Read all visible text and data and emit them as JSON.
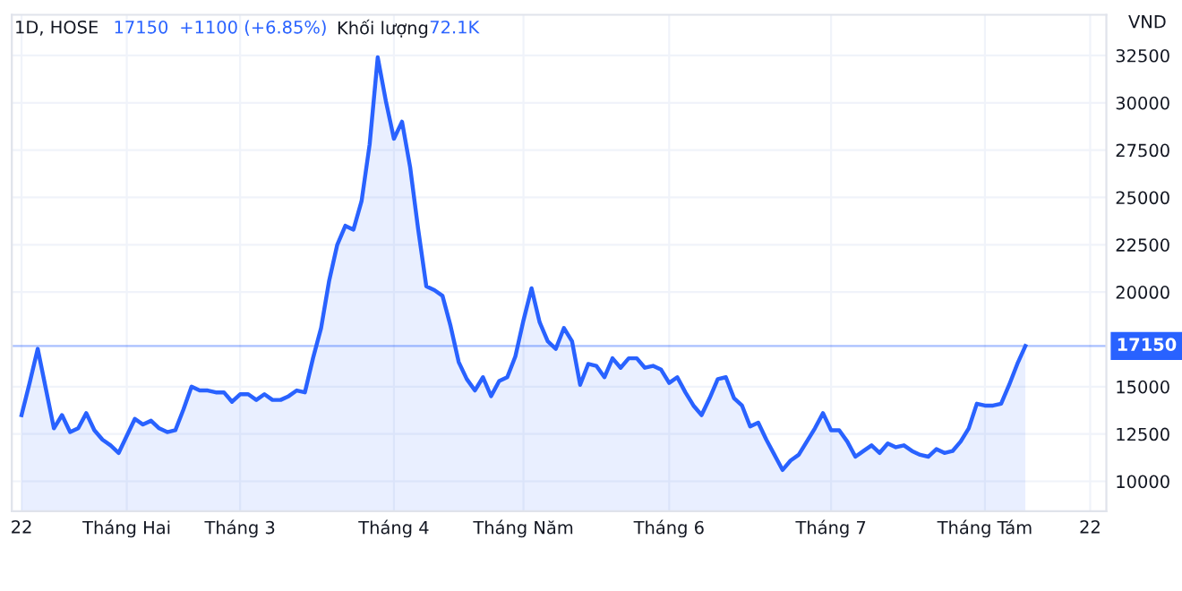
{
  "chart_data": {
    "type": "area",
    "title": "1D, HOSE",
    "annotations": [
      "17150",
      "+1100 (+6.85%)",
      "Khối lượng",
      "72.1K"
    ],
    "ylabel": "VND",
    "categories": [
      "22",
      null,
      null,
      null,
      null,
      null,
      null,
      null,
      null,
      null,
      null,
      null,
      null,
      "Tháng Hai",
      null,
      null,
      null,
      null,
      null,
      null,
      null,
      null,
      null,
      null,
      null,
      null,
      null,
      "Tháng 3",
      null,
      null,
      null,
      null,
      null,
      null,
      null,
      null,
      null,
      null,
      null,
      null,
      null,
      null,
      null,
      null,
      null,
      null,
      "Tháng 4",
      null,
      null,
      null,
      null,
      null,
      null,
      null,
      null,
      null,
      null,
      null,
      null,
      null,
      null,
      null,
      "Tháng Năm",
      null,
      null,
      null,
      null,
      null,
      null,
      null,
      null,
      null,
      null,
      null,
      null,
      null,
      null,
      null,
      null,
      null,
      "Tháng 6",
      null,
      null,
      null,
      null,
      null,
      null,
      null,
      null,
      null,
      null,
      null,
      null,
      null,
      null,
      null,
      null,
      null,
      null,
      null,
      "Tháng 7",
      null,
      null,
      null,
      null,
      null,
      null,
      null,
      null,
      null,
      null,
      null,
      null,
      null,
      null,
      null,
      null,
      null,
      null,
      "Tháng Tám",
      null,
      null,
      null,
      null,
      null,
      null,
      null,
      null,
      null,
      null,
      null,
      null,
      "22",
      null,
      null
    ],
    "series": [
      {
        "color": "#2962ff",
        "values": [
          13500,
          15200,
          17000,
          14900,
          12800,
          13500,
          12600,
          12800,
          13600,
          12700,
          12200,
          11900,
          11500,
          12400,
          13300,
          13000,
          13200,
          12800,
          12600,
          12700,
          13800,
          15000,
          14800,
          14800,
          14700,
          14700,
          14200,
          14600,
          14600,
          14300,
          14600,
          14300,
          14300,
          14500,
          14800,
          14700,
          16500,
          18100,
          20600,
          22500,
          23500,
          23300,
          24800,
          27800,
          32400,
          30100,
          28100,
          29000,
          26600,
          23300,
          20300,
          20100,
          19800,
          18200,
          16300,
          15400,
          14800,
          15500,
          14500,
          15300,
          15500,
          16600,
          18500,
          20200,
          18400,
          17400,
          17000,
          18100,
          17400,
          15100,
          16200,
          16100,
          15500,
          16500,
          16000,
          16500,
          16500,
          16000,
          16100,
          15900,
          15200,
          15500,
          14700,
          14000,
          13500,
          14400,
          15400,
          15500,
          14400,
          14000,
          12900,
          13100,
          12200,
          11400,
          10600,
          11100,
          11400,
          12100,
          12800,
          13600,
          12700,
          12700,
          12100,
          11300,
          11600,
          11900,
          11500,
          12000,
          11800,
          11900,
          11600,
          11400,
          11300,
          11700,
          11500,
          11600,
          12100,
          12800,
          14100,
          14000,
          14000,
          14100,
          15100,
          16200,
          17150,
          null,
          null,
          null,
          null,
          null,
          null,
          null,
          null,
          null,
          null
        ]
      }
    ],
    "ylim": [
      8420,
      34650
    ],
    "yticks": [
      10000,
      12500,
      15000,
      20000,
      22500,
      25000,
      27500,
      30000,
      32500
    ],
    "ref_lines": [
      {
        "axis": "y",
        "value": 17150,
        "label": "17150",
        "color": "#2962ff"
      }
    ],
    "grid": true
  }
}
